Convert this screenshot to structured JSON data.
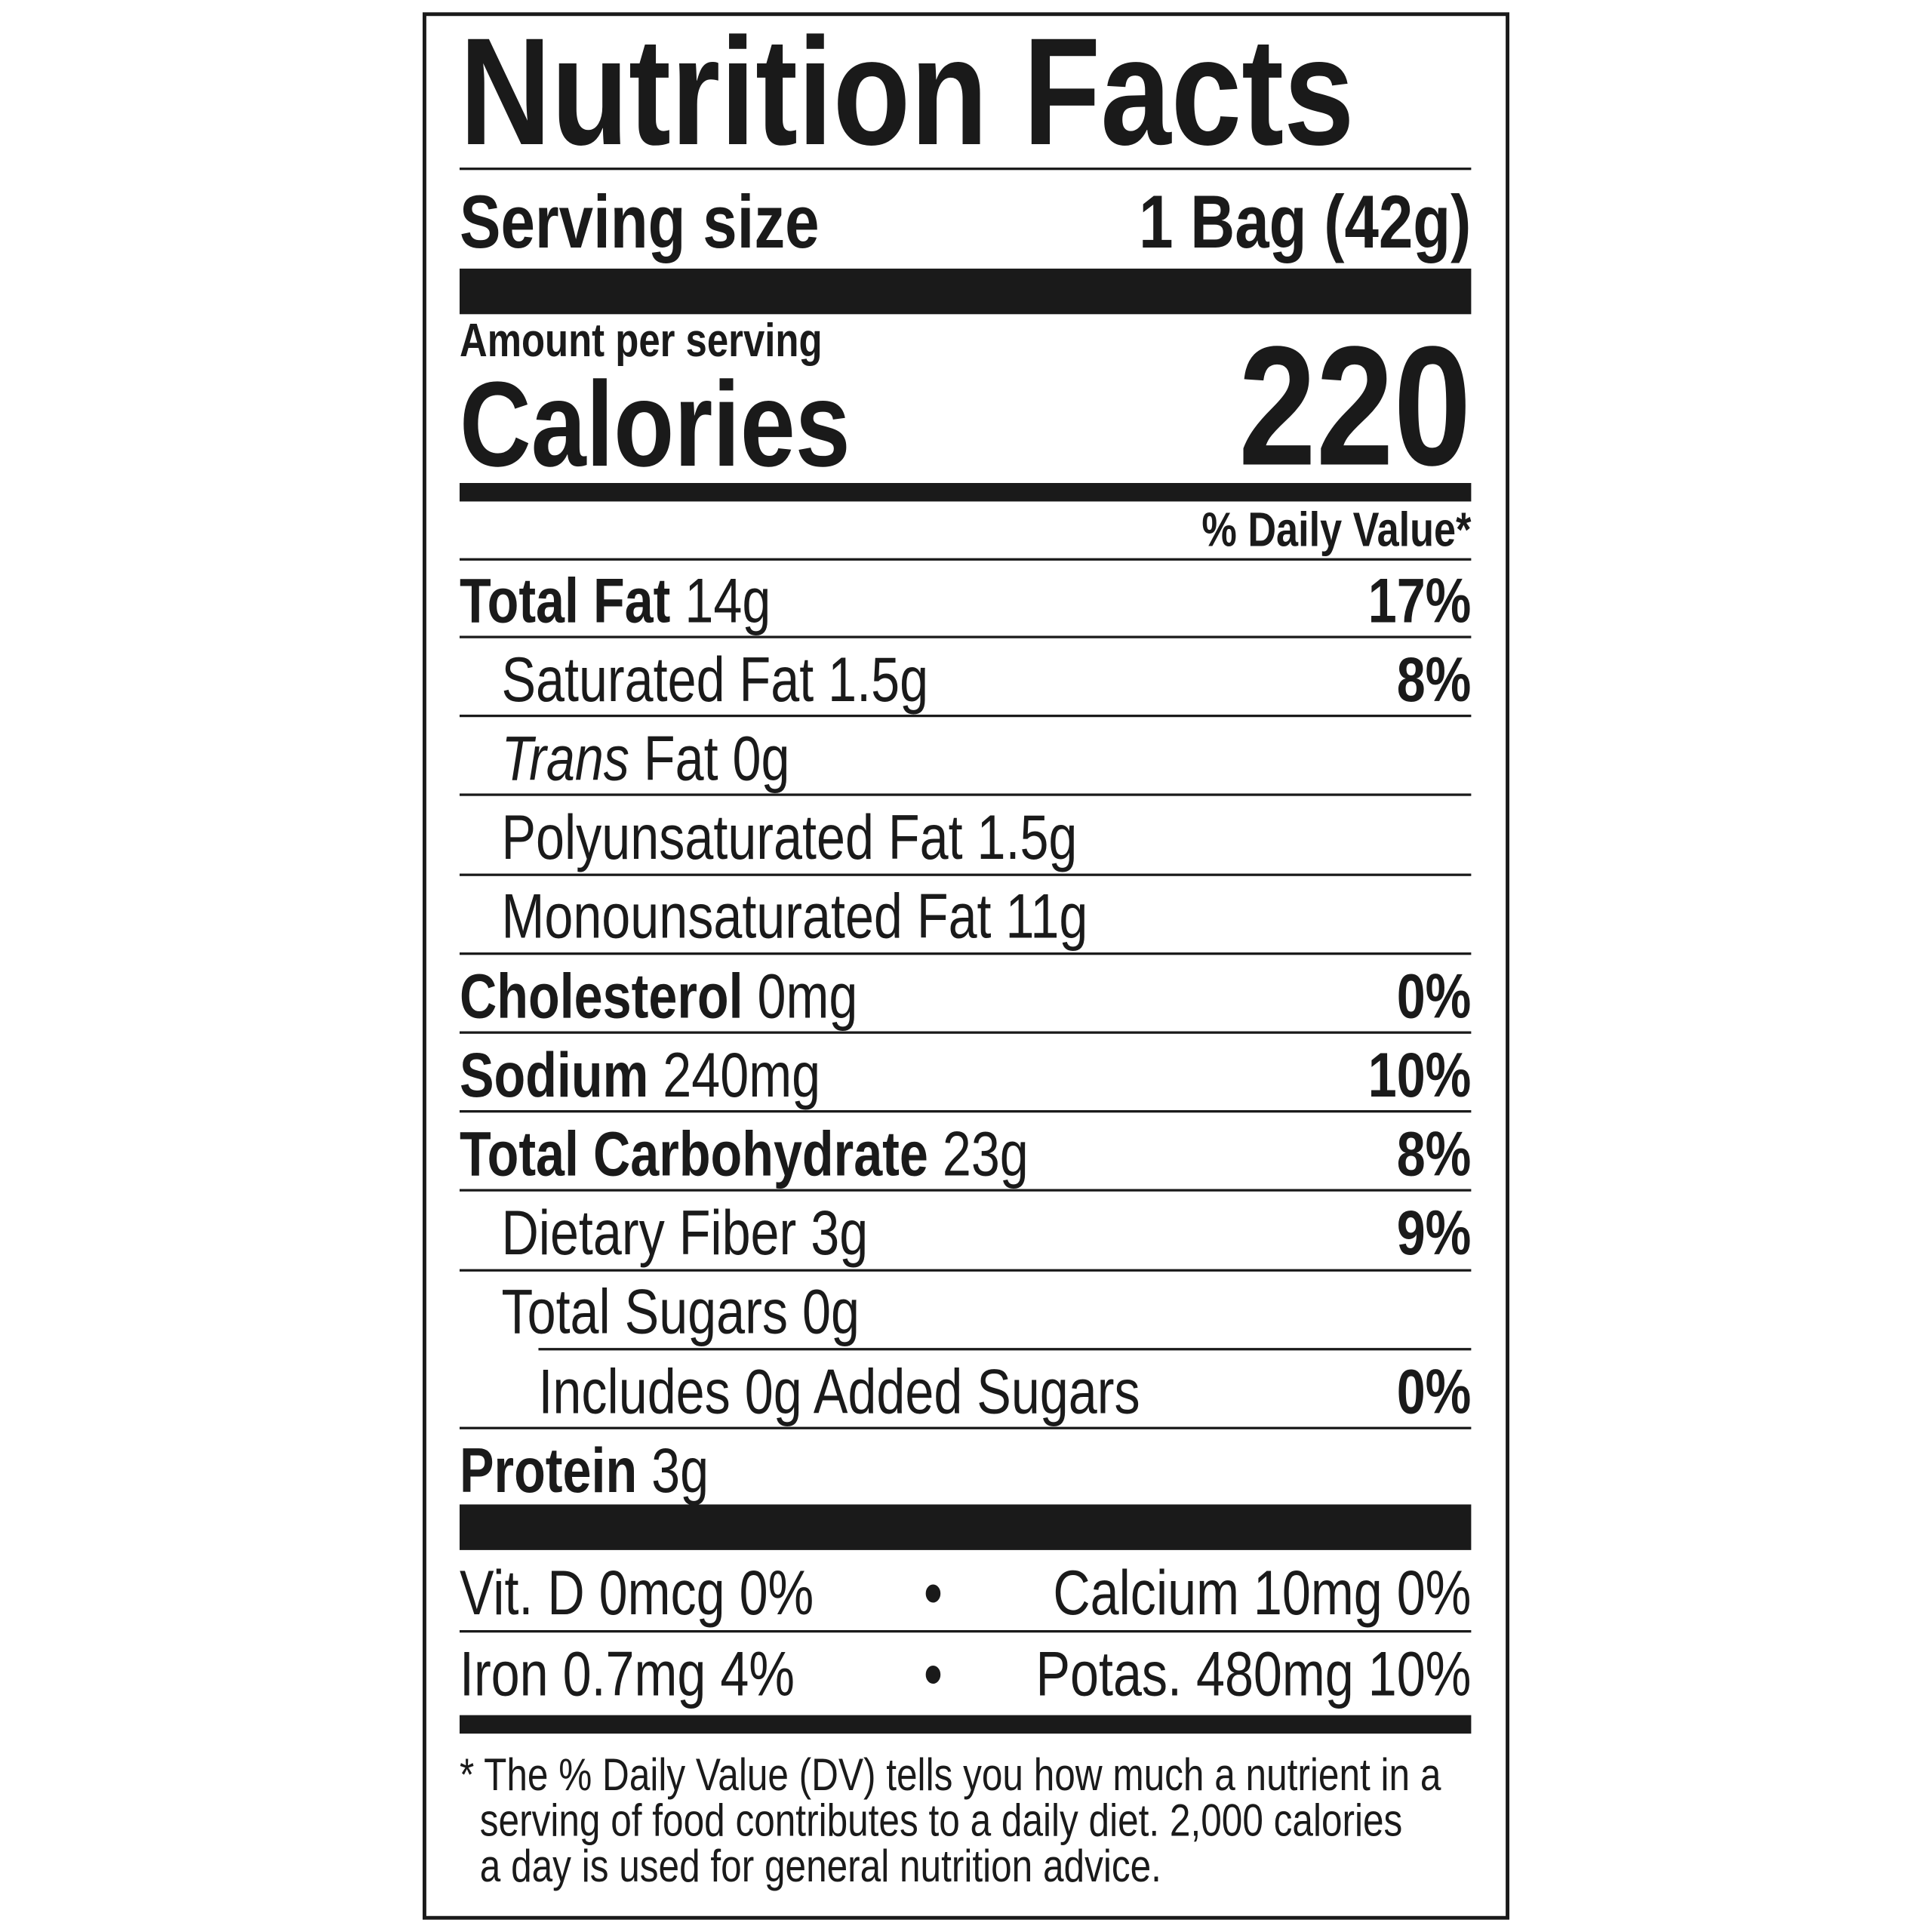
{
  "title": "Nutrition Facts",
  "serving": {
    "label": "Serving size",
    "value": "1 Bag (42g)"
  },
  "amount_label": "Amount per serving",
  "calories": {
    "label": "Calories",
    "value": "220"
  },
  "dv_header": "% Daily Value*",
  "nutrients": [
    {
      "name": "Total Fat",
      "amount": "14g",
      "dv": "17%",
      "bold": true,
      "indent": 0
    },
    {
      "name": "Saturated Fat",
      "amount": "1.5g",
      "dv": "8%",
      "bold": false,
      "indent": 1
    },
    {
      "name": "Trans",
      "name_suffix": "Fat",
      "amount": "0g",
      "dv": "",
      "bold": false,
      "indent": 1
    },
    {
      "name": "Polyunsaturated Fat",
      "amount": "1.5g",
      "dv": "",
      "bold": false,
      "indent": 1
    },
    {
      "name": "Monounsaturated Fat",
      "amount": "11g",
      "dv": "",
      "bold": false,
      "indent": 1
    },
    {
      "name": "Cholesterol",
      "amount": "0mg",
      "dv": "0%",
      "bold": true,
      "indent": 0
    },
    {
      "name": "Sodium",
      "amount": "240mg",
      "dv": "10%",
      "bold": true,
      "indent": 0
    },
    {
      "name": "Total Carbohydrate",
      "amount": "23g",
      "dv": "8%",
      "bold": true,
      "indent": 0
    },
    {
      "name": "Dietary Fiber",
      "amount": "3g",
      "dv": "9%",
      "bold": false,
      "indent": 1
    },
    {
      "name": "Total Sugars",
      "amount": "0g",
      "dv": "",
      "bold": false,
      "indent": 1
    },
    {
      "name": "Includes 0g Added Sugars",
      "amount": "",
      "dv": "0%",
      "bold": false,
      "indent": 2
    },
    {
      "name": "Protein",
      "amount": "3g",
      "dv": "",
      "bold": true,
      "indent": 0
    }
  ],
  "vitamins": [
    {
      "left": "Vit. D 0mcg 0%",
      "sep": "•",
      "right": "Calcium 10mg 0%"
    },
    {
      "left": "Iron 0.7mg 4%",
      "sep": "•",
      "right": "Potas. 480mg 10%"
    }
  ],
  "footnote": [
    "* The % Daily Value (DV) tells you how much a nutrient in a",
    "serving of food contributes to a daily diet. 2,000 calories",
    "a day is used for general nutrition advice."
  ]
}
